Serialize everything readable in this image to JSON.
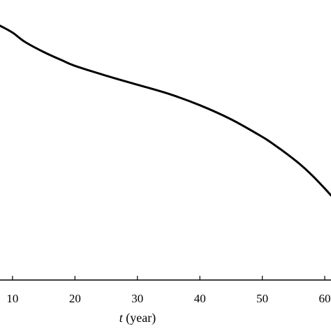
{
  "chart_data": {
    "type": "line",
    "title": "",
    "xlabel_var": "t",
    "xlabel_unit": " (year)",
    "ylabel": "",
    "xlim": [
      8,
      61
    ],
    "ylim": [
      0,
      1
    ],
    "x_ticks": [
      10,
      20,
      30,
      40,
      50,
      60
    ],
    "x_tick_labels": [
      "10",
      "20",
      "30",
      "40",
      "50",
      "60"
    ],
    "grid": false,
    "legend": "none",
    "line_color": "#000000",
    "series": [
      {
        "x": [
          8,
          10,
          12,
          15,
          18,
          20,
          25,
          30,
          35,
          40,
          45,
          50,
          52,
          54,
          56,
          58,
          60,
          61
        ],
        "y": [
          0.956,
          0.93,
          0.895,
          0.857,
          0.825,
          0.805,
          0.768,
          0.734,
          0.7,
          0.657,
          0.604,
          0.538,
          0.507,
          0.473,
          0.436,
          0.393,
          0.344,
          0.318
        ]
      }
    ]
  }
}
